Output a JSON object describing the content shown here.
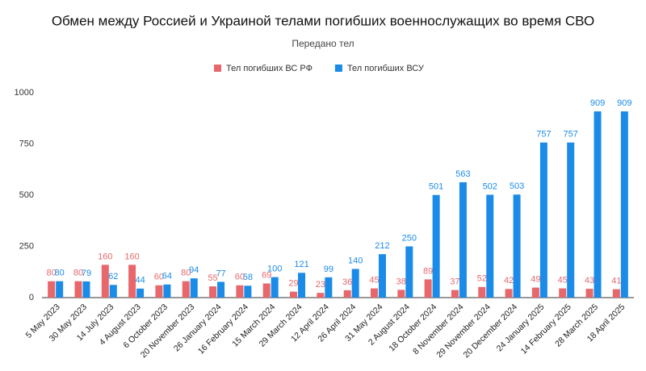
{
  "chart_data": {
    "type": "bar",
    "title": "Обмен между Россией и Украиной телами погибших военнослужащих во время СВО",
    "subtitle": "Передано тел",
    "categories": [
      "5 May 2023",
      "30 May 2023",
      "14 July 2023",
      "4 August 2023",
      "6 October 2023",
      "20 November 2023",
      "26 January 2024",
      "16 February 2024",
      "15 March 2024",
      "29 March 2024",
      "12 April 2024",
      "26 April 2024",
      "31 May 2024",
      "2 August 2024",
      "18 October 2024",
      "8 November 2024",
      "29 November 2024",
      "20 December 2024",
      "24 January 2025",
      "14 February 2025",
      "28 March 2025",
      "18 April 2025"
    ],
    "series": [
      {
        "name": "Тел погибших ВС  РФ",
        "color": "#e8676b",
        "values": [
          80,
          80,
          160,
          160,
          60,
          80,
          55,
          60,
          69,
          29,
          23,
          36,
          45,
          38,
          89,
          37,
          52,
          42,
          49,
          45,
          43,
          41
        ]
      },
      {
        "name": "Тел погибших ВСУ",
        "color": "#1b8be8",
        "values": [
          80,
          79,
          62,
          44,
          64,
          94,
          77,
          58,
          100,
          121,
          99,
          140,
          212,
          250,
          501,
          563,
          502,
          503,
          757,
          757,
          909,
          909
        ]
      }
    ],
    "ylim": [
      0,
      1000
    ],
    "yticks": [
      0,
      250,
      500,
      750,
      1000
    ],
    "grid": false,
    "legend": "top"
  }
}
